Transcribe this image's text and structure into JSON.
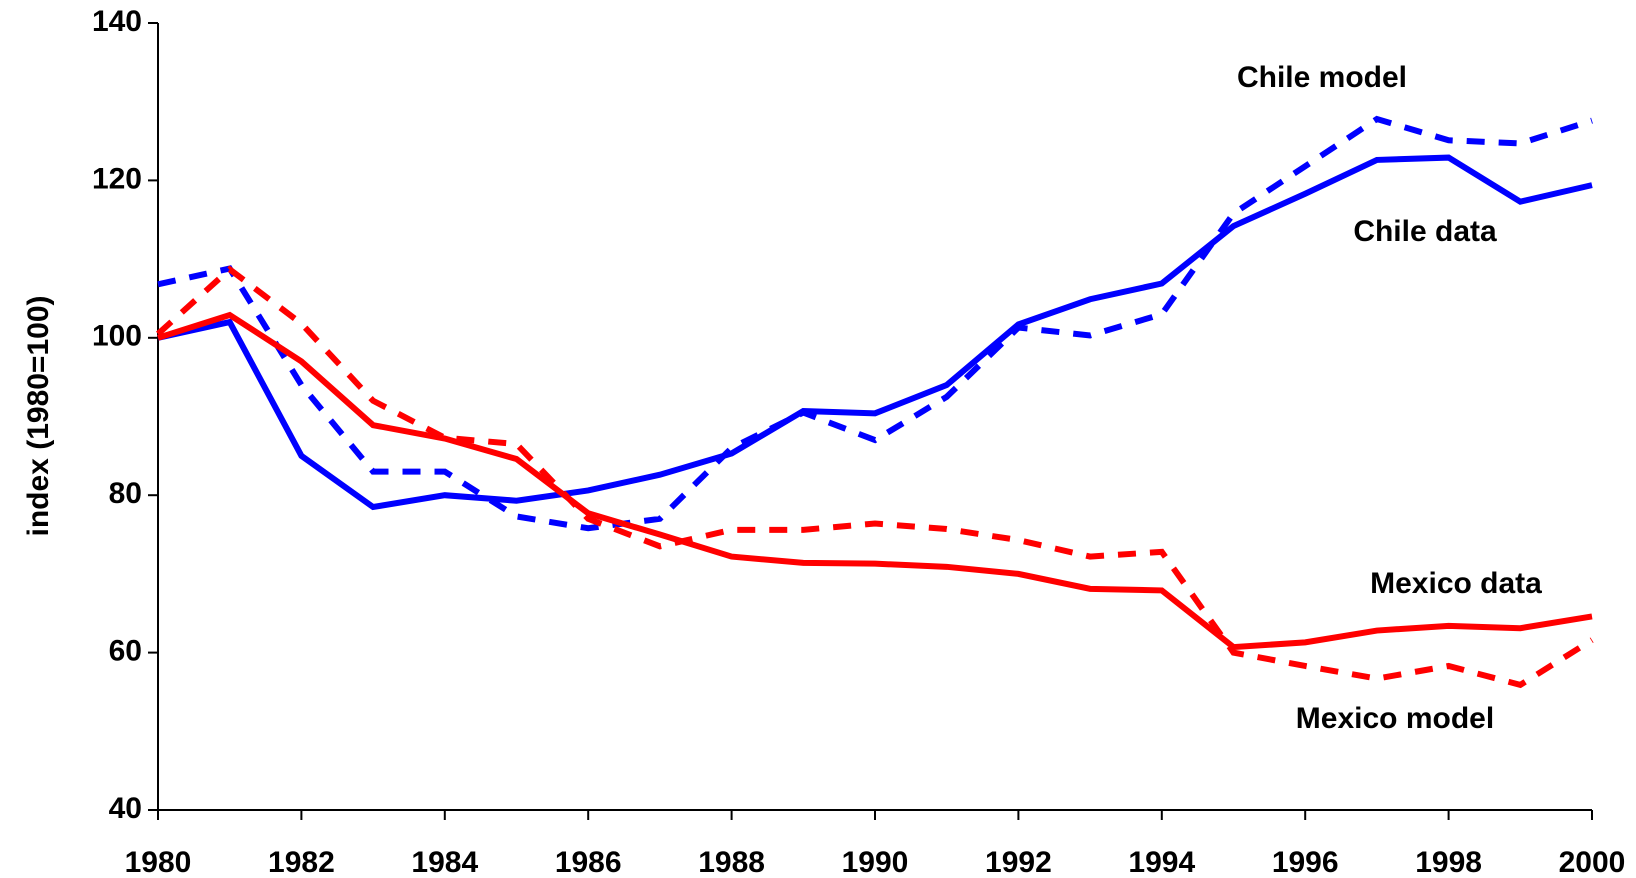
{
  "chart_data": {
    "type": "line",
    "ylabel": "index (1980=100)",
    "x": [
      1980,
      1981,
      1982,
      1983,
      1984,
      1985,
      1986,
      1987,
      1988,
      1989,
      1990,
      1991,
      1992,
      1993,
      1994,
      1995,
      1996,
      1997,
      1998,
      1999,
      2000
    ],
    "series": [
      {
        "name": "Chile data",
        "color": "#0000ff",
        "dashed": false,
        "values": [
          100,
          102,
          85,
          78.5,
          80,
          79.3,
          80.6,
          82.6,
          85.3,
          90.7,
          90.4,
          94,
          101.7,
          104.9,
          106.9,
          114.2,
          118.3,
          122.6,
          122.9,
          117.3,
          119.4
        ]
      },
      {
        "name": "Chile model",
        "color": "#0000ff",
        "dashed": true,
        "values": [
          106.8,
          108.8,
          94,
          83,
          83,
          77.3,
          75.8,
          77,
          86,
          90.5,
          87,
          92.5,
          101.3,
          100.3,
          103,
          115.8,
          121.8,
          127.8,
          125.1,
          124.7,
          127.6
        ]
      },
      {
        "name": "Mexico data",
        "color": "#ff0000",
        "dashed": false,
        "values": [
          100,
          102.9,
          97,
          88.9,
          87.2,
          84.6,
          77.7,
          75,
          72.2,
          71.4,
          71.3,
          70.9,
          70,
          68.1,
          67.9,
          60.7,
          61.3,
          62.8,
          63.4,
          63.1,
          64.6
        ]
      },
      {
        "name": "Mexico model",
        "color": "#ff0000",
        "dashed": true,
        "values": [
          100.5,
          108.7,
          101.8,
          92,
          87.3,
          86.5,
          77,
          73.5,
          75.6,
          75.6,
          76.4,
          75.7,
          74.3,
          72.2,
          72.8,
          60,
          58.3,
          56.7,
          58.3,
          55.9,
          61.6
        ]
      }
    ],
    "xlim": [
      1980,
      2000
    ],
    "xticks": [
      1980,
      1982,
      1984,
      1986,
      1988,
      1990,
      1992,
      1994,
      1996,
      1998,
      2000
    ],
    "ylim": [
      40,
      140
    ],
    "yticks": [
      40,
      60,
      80,
      100,
      120,
      140
    ],
    "grid": false
  }
}
